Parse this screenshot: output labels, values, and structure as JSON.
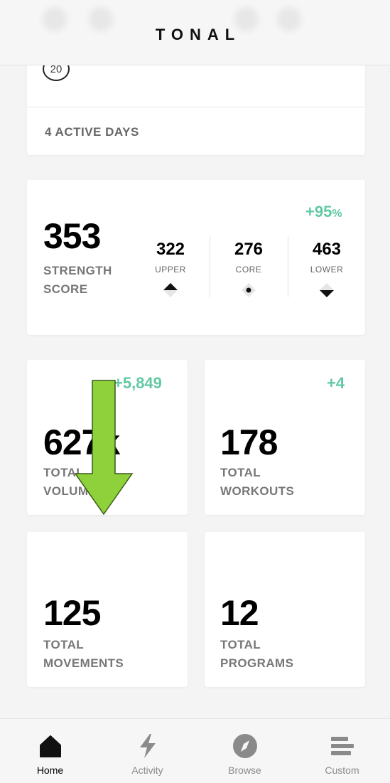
{
  "header": {
    "logo": "TONAL"
  },
  "streak": {
    "badge": "20",
    "active_days": "4 ACTIVE DAYS"
  },
  "strength": {
    "score": "353",
    "label_line1": "STRENGTH",
    "label_line2": "SCORE",
    "delta_value": "+95",
    "delta_unit": "%",
    "upper": {
      "value": "322",
      "label": "UPPER"
    },
    "core": {
      "value": "276",
      "label": "CORE"
    },
    "lower": {
      "value": "463",
      "label": "LOWER"
    }
  },
  "stats": {
    "volume": {
      "value": "627k",
      "delta": "+5,849",
      "label_line1": "TOTAL",
      "label_line2": "VOLUME"
    },
    "workouts": {
      "value": "178",
      "delta": "+4",
      "label_line1": "TOTAL",
      "label_line2": "WORKOUTS"
    },
    "movements": {
      "value": "125",
      "label_line1": "TOTAL",
      "label_line2": "MOVEMENTS"
    },
    "programs": {
      "value": "12",
      "label_line1": "TOTAL",
      "label_line2": "PROGRAMS"
    }
  },
  "colors": {
    "accent_green": "#62c9a3",
    "arrow_green": "#8fd13a"
  },
  "tabbar": {
    "tabs": [
      {
        "label": "Home",
        "icon": "home-icon"
      },
      {
        "label": "Activity",
        "icon": "bolt-icon"
      },
      {
        "label": "Browse",
        "icon": "compass-icon"
      },
      {
        "label": "Custom",
        "icon": "bars-icon"
      }
    ]
  }
}
